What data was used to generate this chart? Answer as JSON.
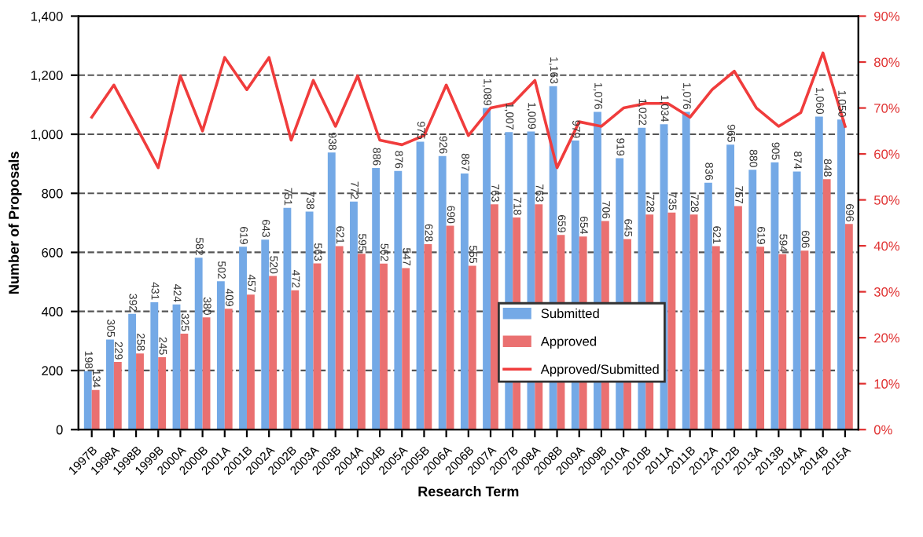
{
  "chart_data": {
    "type": "bar",
    "xlabel": "Research Term",
    "ylabel": "Number of Proposals",
    "categories": [
      "1997B",
      "1998A",
      "1998B",
      "1999B",
      "2000A",
      "2000B",
      "2001A",
      "2001B",
      "2002A",
      "2002B",
      "2003A",
      "2003B",
      "2004A",
      "2004B",
      "2005A",
      "2005B",
      "2006A",
      "2006B",
      "2007A",
      "2007B",
      "2008A",
      "2008B",
      "2009A",
      "2009B",
      "2010A",
      "2010B",
      "2011A",
      "2011B",
      "2012A",
      "2012B",
      "2013A",
      "2013B",
      "2014A",
      "2014B",
      "2015A"
    ],
    "series": [
      {
        "name": "Submitted",
        "color": "#74a9e6",
        "values": [
          198,
          305,
          392,
          431,
          424,
          582,
          502,
          619,
          643,
          751,
          738,
          938,
          772,
          886,
          876,
          975,
          926,
          867,
          1089,
          1007,
          1009,
          1163,
          979,
          1076,
          919,
          1022,
          1034,
          1076,
          836,
          965,
          880,
          905,
          874,
          1060,
          1050
        ],
        "value_labels": [
          "198",
          "305",
          "392",
          "431",
          "424",
          "582",
          "502",
          "619",
          "643",
          "751",
          "738",
          "938",
          "772",
          "886",
          "876",
          "975",
          "926",
          "867",
          "1,089",
          "1,007",
          "1,009",
          "1,163",
          "979",
          "1,076",
          "919",
          "1,022",
          "1,034",
          "1,076",
          "836",
          "965",
          "880",
          "905",
          "874",
          "1,060",
          "1,050"
        ]
      },
      {
        "name": "Approved",
        "color": "#ea7070",
        "values": [
          134,
          229,
          258,
          245,
          325,
          380,
          409,
          457,
          520,
          472,
          563,
          621,
          595,
          562,
          547,
          628,
          690,
          555,
          763,
          718,
          763,
          659,
          654,
          706,
          645,
          728,
          735,
          728,
          621,
          757,
          619,
          594,
          606,
          848,
          696
        ],
        "value_labels": [
          "134",
          "229",
          "258",
          "245",
          "325",
          "380",
          "409",
          "457",
          "520",
          "472",
          "563",
          "621",
          "595",
          "562",
          "547",
          "628",
          "690",
          "555",
          "763",
          "718",
          "763",
          "659",
          "654",
          "706",
          "645",
          "728",
          "735",
          "728",
          "621",
          "757",
          "619",
          "594",
          "606",
          "848",
          "696"
        ]
      },
      {
        "name": "Approved/Submitted",
        "type": "line",
        "axis": "y2",
        "color": "#f03c3c",
        "values": [
          68,
          75,
          66,
          57,
          77,
          65,
          81,
          74,
          81,
          63,
          76,
          66,
          77,
          63,
          62,
          64,
          75,
          64,
          70,
          71,
          76,
          57,
          67,
          66,
          70,
          71,
          71,
          68,
          74,
          78,
          70,
          66,
          69,
          82,
          66
        ]
      }
    ],
    "ylim": [
      0,
      1400
    ],
    "yticks": [
      0,
      {
        "value": 200,
        "label": "200"
      },
      400,
      600,
      800,
      {
        "value": 1000,
        "label": "1,000"
      },
      {
        "value": 1200,
        "label": "1,200"
      },
      {
        "value": 1400,
        "label": "1,400"
      }
    ],
    "y2lim": [
      0,
      90
    ],
    "y2ticks": [
      {
        "value": 0,
        "label": "0%"
      },
      {
        "value": 10,
        "label": "10%"
      },
      {
        "value": 20,
        "label": "20%"
      },
      {
        "value": 30,
        "label": "30%"
      },
      {
        "value": 40,
        "label": "40%"
      },
      {
        "value": 50,
        "label": "50%"
      },
      {
        "value": 60,
        "label": "60%"
      },
      {
        "value": 70,
        "label": "70%"
      },
      {
        "value": 80,
        "label": "80%"
      },
      {
        "value": 90,
        "label": "90%"
      }
    ],
    "grid": "y",
    "legend": "bottom right",
    "line_style": "solid",
    "marker": "none"
  }
}
